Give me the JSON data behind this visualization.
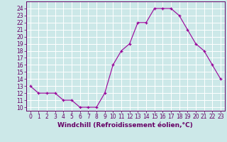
{
  "hours": [
    0,
    1,
    2,
    3,
    4,
    5,
    6,
    7,
    8,
    9,
    10,
    11,
    12,
    13,
    14,
    15,
    16,
    17,
    18,
    19,
    20,
    21,
    22,
    23
  ],
  "values": [
    13,
    12,
    12,
    12,
    11,
    11,
    10,
    10,
    10,
    12,
    16,
    18,
    19,
    22,
    22,
    24,
    24,
    24,
    23,
    21,
    19,
    18,
    16,
    14
  ],
  "line_color": "#990099",
  "marker": "+",
  "marker_size": 3,
  "bg_color": "#cce8e8",
  "grid_color": "#ffffff",
  "xlabel": "Windchill (Refroidissement éolien,°C)",
  "xlim": [
    -0.5,
    23.5
  ],
  "ylim": [
    9.5,
    25.0
  ],
  "yticks": [
    10,
    11,
    12,
    13,
    14,
    15,
    16,
    17,
    18,
    19,
    20,
    21,
    22,
    23,
    24
  ],
  "xticks": [
    0,
    1,
    2,
    3,
    4,
    5,
    6,
    7,
    8,
    9,
    10,
    11,
    12,
    13,
    14,
    15,
    16,
    17,
    18,
    19,
    20,
    21,
    22,
    23
  ],
  "tick_color": "#660066",
  "tick_fontsize": 5.5,
  "xlabel_fontsize": 6.5
}
